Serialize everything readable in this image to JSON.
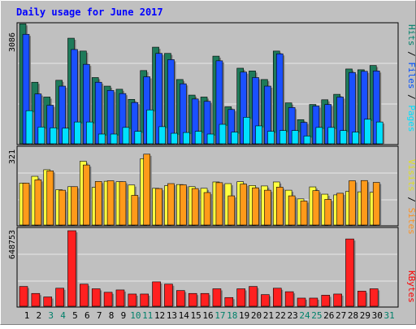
{
  "chart_data": {
    "type": "bar",
    "title": "Daily usage for June 2017",
    "categories": [
      "1",
      "2",
      "3",
      "4",
      "5",
      "6",
      "7",
      "8",
      "9",
      "10",
      "11",
      "12",
      "13",
      "14",
      "15",
      "16",
      "17",
      "18",
      "19",
      "20",
      "21",
      "22",
      "23",
      "24",
      "25",
      "26",
      "27",
      "28",
      "29",
      "30",
      "31"
    ],
    "weekend_days": [
      "3",
      "4",
      "10",
      "11",
      "17",
      "18",
      "24",
      "25",
      "31"
    ],
    "panels": [
      {
        "id": "hits_files_pages",
        "max_label": "3086",
        "ylim": [
          0,
          3086
        ],
        "legend": [
          {
            "label": "Pages",
            "color": "#00e0ff"
          },
          {
            "label": "/",
            "color": "#000000"
          },
          {
            "label": "Files",
            "color": "#0050ff"
          },
          {
            "label": "/",
            "color": "#000000"
          },
          {
            "label": "Hits",
            "color": "#00806a"
          }
        ],
        "series": [
          {
            "name": "Hits",
            "color": "#1e7a5a",
            "values": [
              3080,
              1580,
              1200,
              1630,
              2710,
              2380,
              1700,
              1480,
              1400,
              1140,
              1880,
              2480,
              2320,
              1650,
              1250,
              1200,
              2250,
              950,
              1940,
              1870,
              1650,
              2380,
              1050,
              620,
              1010,
              1130,
              1270,
              1920,
              1900,
              2010,
              0
            ]
          },
          {
            "name": "Files",
            "color": "#1a50ff",
            "values": [
              2810,
              1280,
              990,
              1480,
              2420,
              2040,
              1580,
              1370,
              1290,
              1060,
              1720,
              2320,
              2160,
              1540,
              1150,
              1090,
              2130,
              880,
              1840,
              1700,
              1480,
              2310,
              930,
              550,
              970,
              1010,
              1200,
              1830,
              1860,
              1870,
              0
            ]
          },
          {
            "name": "Pages",
            "color": "#00e0ff",
            "values": [
              850,
              430,
              410,
              400,
              560,
              560,
              250,
              250,
              420,
              320,
              870,
              440,
              270,
              290,
              320,
              250,
              500,
              300,
              680,
              460,
              320,
              340,
              340,
              200,
              420,
              420,
              340,
              300,
              630,
              560,
              0
            ]
          }
        ]
      },
      {
        "id": "visits_sites",
        "max_label": "321",
        "ylim": [
          0,
          321
        ],
        "legend": [
          {
            "label": "Sites",
            "color": "#ff9020"
          },
          {
            "label": "/",
            "color": "#000000"
          },
          {
            "label": "Visits",
            "color": "#e0e020"
          }
        ],
        "series": [
          {
            "name": "Visits",
            "color": "#ffff40",
            "values": [
              178,
              207,
              235,
              150,
              163,
              271,
              160,
              186,
              184,
              170,
              282,
              156,
              167,
              172,
              163,
              156,
              183,
              176,
              184,
              168,
              166,
              183,
              148,
              111,
              162,
              131,
              128,
              143,
              141,
              139,
              0
            ]
          },
          {
            "name": "Sites",
            "color": "#ff9a1a",
            "values": [
              178,
              192,
              230,
              148,
              163,
              255,
              185,
              188,
              184,
              126,
              301,
              155,
              176,
              171,
              155,
              138,
              180,
              124,
              174,
              158,
              148,
              161,
              124,
              102,
              146,
              109,
              135,
              188,
              189,
              181,
              0
            ]
          }
        ]
      },
      {
        "id": "kbytes",
        "max_label": "648753",
        "ylim": [
          0,
          648753
        ],
        "legend": [
          {
            "label": "KBytes",
            "color": "#ff0000"
          }
        ],
        "series": [
          {
            "name": "KBytes",
            "color": "#ff2020",
            "values": [
              170000,
              110000,
              80000,
              155000,
              648753,
              190000,
              150000,
              120000,
              140000,
              105000,
              105000,
              210000,
              190000,
              135000,
              110000,
              110000,
              150000,
              75000,
              150000,
              170000,
              100000,
              155000,
              125000,
              70000,
              70000,
              95000,
              105000,
              578000,
              130000,
              150000,
              0
            ]
          }
        ]
      }
    ],
    "colors": {
      "background": "#c0c0c0",
      "gridline": "#ffffff",
      "title": "#0000ff",
      "weekend_label": "#00806a",
      "weekday_label": "#000000"
    }
  }
}
